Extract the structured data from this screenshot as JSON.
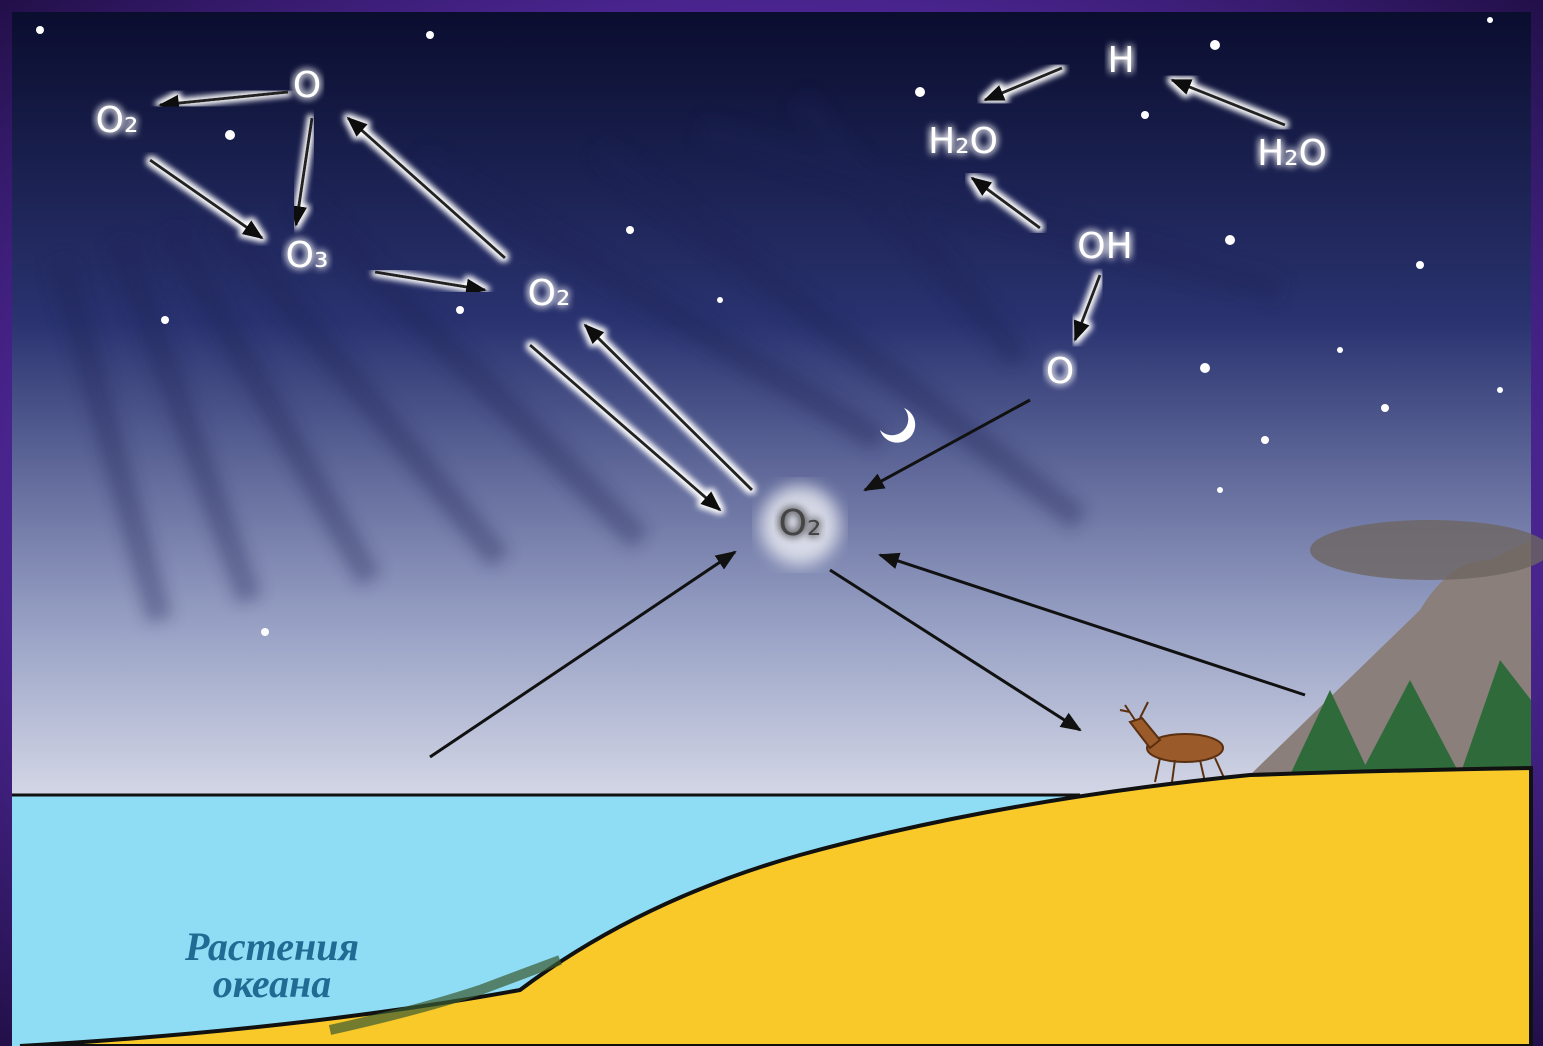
{
  "nodes": [
    {
      "label": "O₂"
    },
    {
      "label": "O"
    },
    {
      "label": "O₃"
    },
    {
      "label": "O₂"
    },
    {
      "label": "H"
    },
    {
      "label": "H₂O"
    },
    {
      "label": "H₂O"
    },
    {
      "label": "OH"
    },
    {
      "label": "O"
    },
    {
      "label": "O₂"
    }
  ],
  "caption": {
    "lines": [
      "Растения",
      "океана"
    ]
  }
}
